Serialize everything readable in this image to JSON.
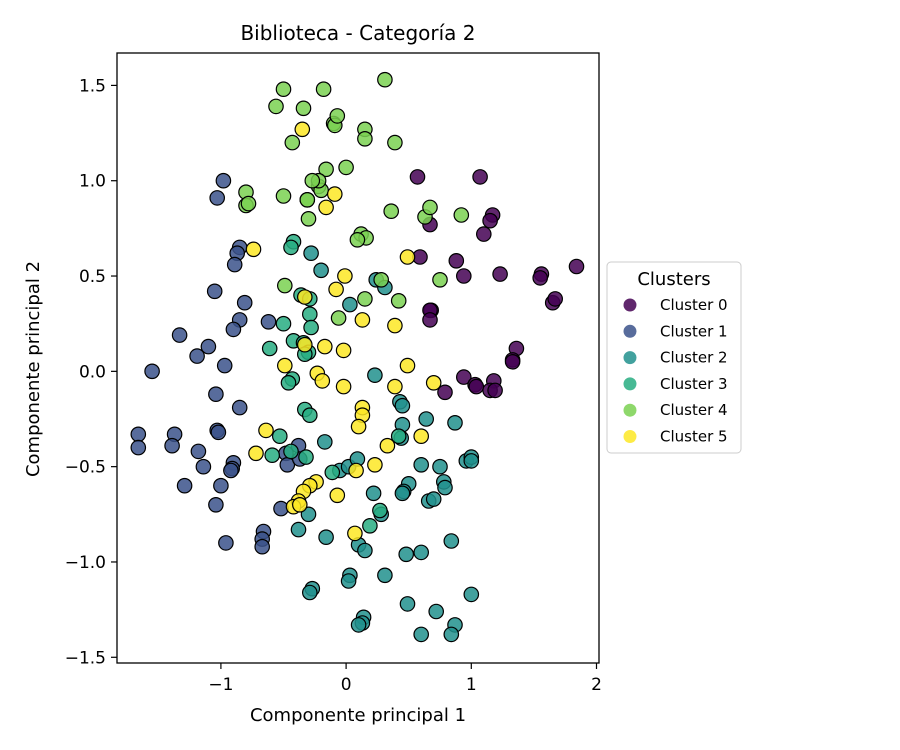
{
  "chart_data": {
    "type": "scatter",
    "title": "Biblioteca - Categoría 2",
    "xlabel": "Componente principal 1",
    "ylabel": "Componente principal 2",
    "xlim": [
      -1.83,
      2.02
    ],
    "ylim": [
      -1.53,
      1.67
    ],
    "x_ticks": [
      -1,
      0,
      1,
      2
    ],
    "y_ticks": [
      -1.5,
      -1.0,
      -0.5,
      0.0,
      0.5,
      1.0,
      1.5
    ],
    "x_tick_labels": [
      "−1",
      "0",
      "1",
      "2"
    ],
    "y_tick_labels": [
      "−1.5",
      "−1.0",
      "−0.5",
      "0.0",
      "0.5",
      "1.0",
      "1.5"
    ],
    "grid": false,
    "legend": {
      "title": "Clusters",
      "placement": "outside-right"
    },
    "series": [
      {
        "name": "Cluster 0",
        "color": "#440154",
        "points": [
          [
            0.57,
            1.02
          ],
          [
            1.07,
            1.02
          ],
          [
            0.67,
            0.77
          ],
          [
            1.17,
            0.82
          ],
          [
            1.15,
            0.79
          ],
          [
            1.1,
            0.72
          ],
          [
            0.88,
            0.58
          ],
          [
            0.94,
            0.5
          ],
          [
            1.23,
            0.51
          ],
          [
            1.56,
            0.51
          ],
          [
            1.55,
            0.49
          ],
          [
            1.65,
            0.36
          ],
          [
            1.67,
            0.38
          ],
          [
            1.84,
            0.55
          ],
          [
            0.59,
            0.6
          ],
          [
            0.68,
            0.32
          ],
          [
            0.67,
            0.32
          ],
          [
            0.67,
            0.27
          ],
          [
            1.36,
            0.12
          ],
          [
            1.33,
            0.06
          ],
          [
            1.33,
            0.05
          ],
          [
            0.94,
            -0.03
          ],
          [
            1.03,
            -0.07
          ],
          [
            1.04,
            -0.08
          ],
          [
            1.18,
            -0.05
          ],
          [
            1.15,
            -0.1
          ],
          [
            1.19,
            -0.1
          ],
          [
            0.79,
            -0.11
          ]
        ]
      },
      {
        "name": "Cluster 1",
        "color": "#3b528b",
        "points": [
          [
            -0.98,
            1.0
          ],
          [
            -1.03,
            0.91
          ],
          [
            -0.85,
            0.65
          ],
          [
            -0.87,
            0.62
          ],
          [
            -0.89,
            0.56
          ],
          [
            -1.05,
            0.42
          ],
          [
            -0.81,
            0.36
          ],
          [
            -0.85,
            0.27
          ],
          [
            -0.9,
            0.22
          ],
          [
            -0.62,
            0.26
          ],
          [
            -1.33,
            0.19
          ],
          [
            -1.1,
            0.13
          ],
          [
            -1.19,
            0.08
          ],
          [
            -0.97,
            0.03
          ],
          [
            -1.55,
            0.0
          ],
          [
            -1.04,
            -0.12
          ],
          [
            -0.85,
            -0.19
          ],
          [
            -1.66,
            -0.33
          ],
          [
            -1.37,
            -0.33
          ],
          [
            -1.03,
            -0.31
          ],
          [
            -1.02,
            -0.32
          ],
          [
            -1.66,
            -0.4
          ],
          [
            -1.39,
            -0.39
          ],
          [
            -1.18,
            -0.42
          ],
          [
            -1.14,
            -0.5
          ],
          [
            -0.9,
            -0.48
          ],
          [
            -0.91,
            -0.51
          ],
          [
            -0.92,
            -0.52
          ],
          [
            -1.0,
            -0.6
          ],
          [
            -1.29,
            -0.6
          ],
          [
            -1.04,
            -0.7
          ],
          [
            -0.96,
            -0.9
          ],
          [
            -0.66,
            -0.84
          ],
          [
            -0.67,
            -0.88
          ],
          [
            -0.67,
            -0.92
          ],
          [
            -0.52,
            -0.72
          ],
          [
            -0.48,
            -0.43
          ],
          [
            -0.38,
            -0.39
          ],
          [
            -0.47,
            -0.49
          ],
          [
            -0.37,
            -0.46
          ]
        ]
      },
      {
        "name": "Cluster 2",
        "color": "#21908d",
        "points": [
          [
            0.23,
            -0.02
          ],
          [
            0.43,
            -0.16
          ],
          [
            0.45,
            -0.18
          ],
          [
            0.64,
            -0.25
          ],
          [
            0.45,
            -0.28
          ],
          [
            0.87,
            -0.27
          ],
          [
            0.44,
            -0.35
          ],
          [
            -0.17,
            -0.37
          ],
          [
            -0.05,
            -0.52
          ],
          [
            0.02,
            -0.5
          ],
          [
            0.09,
            -0.46
          ],
          [
            0.6,
            -0.49
          ],
          [
            0.75,
            -0.5
          ],
          [
            0.96,
            -0.47
          ],
          [
            1.0,
            -0.45
          ],
          [
            1.0,
            -0.47
          ],
          [
            0.78,
            -0.58
          ],
          [
            0.79,
            -0.61
          ],
          [
            0.5,
            -0.59
          ],
          [
            0.46,
            -0.63
          ],
          [
            0.45,
            -0.64
          ],
          [
            0.22,
            -0.64
          ],
          [
            0.66,
            -0.68
          ],
          [
            0.7,
            -0.67
          ],
          [
            -0.38,
            -0.83
          ],
          [
            -0.3,
            -0.75
          ],
          [
            -0.16,
            -0.87
          ],
          [
            0.1,
            -0.91
          ],
          [
            0.15,
            -0.94
          ],
          [
            0.28,
            -0.75
          ],
          [
            0.48,
            -0.96
          ],
          [
            0.6,
            -0.95
          ],
          [
            0.84,
            -0.89
          ],
          [
            0.31,
            -1.07
          ],
          [
            0.03,
            -1.07
          ],
          [
            0.02,
            -1.1
          ],
          [
            -0.27,
            -1.14
          ],
          [
            -0.29,
            -1.16
          ],
          [
            0.14,
            -1.29
          ],
          [
            0.13,
            -1.32
          ],
          [
            0.1,
            -1.33
          ],
          [
            0.49,
            -1.22
          ],
          [
            0.72,
            -1.26
          ],
          [
            0.87,
            -1.33
          ],
          [
            0.84,
            -1.38
          ],
          [
            0.6,
            -1.38
          ],
          [
            1.0,
            -1.17
          ],
          [
            -0.28,
            0.62
          ],
          [
            -0.2,
            0.53
          ],
          [
            0.24,
            0.48
          ],
          [
            0.31,
            0.44
          ],
          [
            0.03,
            0.35
          ]
        ]
      },
      {
        "name": "Cluster 3",
        "color": "#27ad81",
        "points": [
          [
            -0.42,
            0.68
          ],
          [
            -0.44,
            0.65
          ],
          [
            -0.36,
            0.4
          ],
          [
            -0.29,
            0.38
          ],
          [
            -0.29,
            0.3
          ],
          [
            -0.28,
            0.23
          ],
          [
            -0.5,
            0.25
          ],
          [
            -0.42,
            0.16
          ],
          [
            -0.34,
            0.15
          ],
          [
            -0.3,
            0.1
          ],
          [
            -0.33,
            0.09
          ],
          [
            -0.61,
            0.12
          ],
          [
            -0.43,
            -0.04
          ],
          [
            -0.46,
            -0.06
          ],
          [
            -0.33,
            -0.2
          ],
          [
            -0.29,
            -0.23
          ],
          [
            -0.53,
            -0.34
          ],
          [
            -0.44,
            -0.42
          ],
          [
            -0.32,
            -0.45
          ],
          [
            -0.59,
            -0.44
          ],
          [
            -0.11,
            -0.53
          ],
          [
            0.19,
            -0.81
          ],
          [
            0.27,
            -0.73
          ],
          [
            0.42,
            -0.34
          ]
        ]
      },
      {
        "name": "Cluster 4",
        "color": "#7ad151",
        "points": [
          [
            -0.5,
            1.48
          ],
          [
            -0.56,
            1.39
          ],
          [
            -0.34,
            1.38
          ],
          [
            -0.18,
            1.48
          ],
          [
            0.31,
            1.53
          ],
          [
            -0.1,
            1.3
          ],
          [
            -0.09,
            1.29
          ],
          [
            -0.07,
            1.34
          ],
          [
            0.15,
            1.27
          ],
          [
            0.15,
            1.22
          ],
          [
            0.39,
            1.2
          ],
          [
            -0.43,
            1.2
          ],
          [
            -0.16,
            1.06
          ],
          [
            0.0,
            1.07
          ],
          [
            -0.22,
            0.97
          ],
          [
            -0.2,
            0.95
          ],
          [
            -0.22,
            1.0
          ],
          [
            -0.27,
            1.0
          ],
          [
            -0.31,
            0.9
          ],
          [
            -0.31,
            0.9
          ],
          [
            -0.3,
            0.8
          ],
          [
            -0.5,
            0.92
          ],
          [
            -0.8,
            0.94
          ],
          [
            -0.8,
            0.87
          ],
          [
            -0.78,
            0.88
          ],
          [
            0.63,
            0.81
          ],
          [
            0.67,
            0.86
          ],
          [
            0.92,
            0.82
          ],
          [
            0.36,
            0.84
          ],
          [
            0.12,
            0.72
          ],
          [
            0.16,
            0.7
          ],
          [
            0.09,
            0.69
          ],
          [
            0.28,
            0.48
          ],
          [
            0.42,
            0.37
          ],
          [
            0.15,
            0.38
          ],
          [
            -0.49,
            0.45
          ],
          [
            -0.06,
            0.28
          ],
          [
            0.75,
            0.48
          ]
        ]
      },
      {
        "name": "Cluster 5",
        "color": "#fde725",
        "points": [
          [
            -0.35,
            1.27
          ],
          [
            -0.09,
            0.93
          ],
          [
            -0.16,
            0.86
          ],
          [
            -0.74,
            0.64
          ],
          [
            0.49,
            0.6
          ],
          [
            -0.01,
            0.5
          ],
          [
            -0.08,
            0.43
          ],
          [
            -0.33,
            0.39
          ],
          [
            0.13,
            0.27
          ],
          [
            0.39,
            0.24
          ],
          [
            -0.33,
            0.14
          ],
          [
            -0.17,
            0.13
          ],
          [
            -0.02,
            0.11
          ],
          [
            -0.49,
            0.03
          ],
          [
            0.49,
            0.03
          ],
          [
            -0.23,
            -0.01
          ],
          [
            -0.19,
            -0.05
          ],
          [
            -0.02,
            -0.08
          ],
          [
            0.39,
            -0.08
          ],
          [
            0.7,
            -0.06
          ],
          [
            -0.64,
            -0.31
          ],
          [
            -0.72,
            -0.43
          ],
          [
            0.13,
            -0.19
          ],
          [
            0.13,
            -0.23
          ],
          [
            0.1,
            -0.29
          ],
          [
            0.6,
            -0.34
          ],
          [
            0.33,
            -0.39
          ],
          [
            0.23,
            -0.49
          ],
          [
            0.08,
            -0.52
          ],
          [
            -0.24,
            -0.58
          ],
          [
            -0.29,
            -0.6
          ],
          [
            -0.34,
            -0.63
          ],
          [
            -0.38,
            -0.68
          ],
          [
            -0.42,
            -0.71
          ],
          [
            -0.37,
            -0.7
          ],
          [
            -0.07,
            -0.65
          ],
          [
            0.07,
            -0.85
          ]
        ]
      }
    ]
  }
}
